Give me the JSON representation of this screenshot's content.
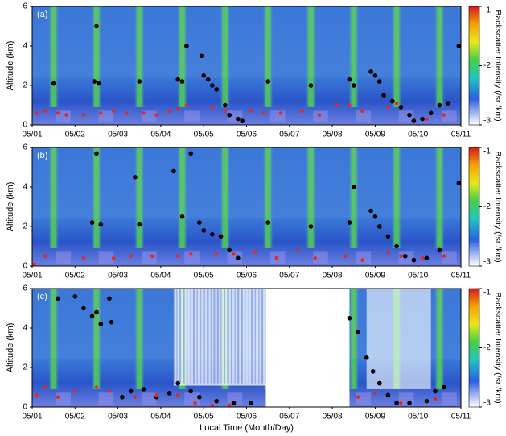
{
  "chart_data": [
    {
      "type": "scatter",
      "panel_label": "(a)",
      "ylabel": "Altitude (km)",
      "xlim": [
        1,
        11
      ],
      "ylim": [
        0,
        6
      ],
      "xticks": [
        {
          "value": 1,
          "label": "05/01"
        },
        {
          "value": 2,
          "label": "05/02"
        },
        {
          "value": 3,
          "label": "05/03"
        },
        {
          "value": 4,
          "label": "05/04"
        },
        {
          "value": 5,
          "label": "05/05"
        },
        {
          "value": 6,
          "label": "05/06"
        },
        {
          "value": 7,
          "label": "05/07"
        },
        {
          "value": 8,
          "label": "05/08"
        },
        {
          "value": 9,
          "label": "05/09"
        },
        {
          "value": 10,
          "label": "05/10"
        },
        {
          "value": 11,
          "label": "05/11"
        }
      ],
      "yticks": [
        0,
        2,
        4,
        6
      ],
      "colorbar": {
        "label": "Backscatter Intensity (/sr /km)",
        "lim": [
          -3,
          -1
        ],
        "ticks": [
          -1,
          -2,
          -3
        ]
      },
      "series": [
        {
          "color": "#000000",
          "x": [
            1.5,
            2.45,
            2.5,
            2.55,
            3.5,
            4.4,
            4.5,
            4.6,
            4.95,
            5.0,
            5.1,
            5.2,
            5.3,
            5.5,
            5.6,
            5.8,
            5.9,
            6.5,
            7.5,
            8.4,
            8.5,
            8.9,
            9.0,
            9.1,
            9.2,
            9.4,
            9.6,
            9.8,
            9.9,
            10.1,
            10.3,
            10.5,
            10.7,
            10.95
          ],
          "values": [
            2.1,
            2.2,
            5.0,
            2.1,
            2.2,
            2.3,
            2.2,
            4.0,
            3.5,
            2.5,
            2.3,
            2.0,
            1.8,
            1.0,
            0.5,
            0.3,
            0.2,
            2.2,
            2.0,
            2.3,
            2.0,
            2.7,
            2.5,
            2.2,
            1.5,
            1.2,
            0.9,
            0.5,
            0.2,
            0.3,
            0.6,
            1.0,
            1.1,
            4.0
          ]
        },
        {
          "color": "#e8261c",
          "x": [
            1.1,
            1.3,
            1.6,
            1.8,
            2.2,
            2.6,
            2.9,
            3.2,
            3.6,
            3.9,
            4.2,
            4.4,
            4.6,
            5.2,
            5.5,
            6.1,
            6.4,
            6.8,
            7.3,
            7.7,
            8.1,
            8.4,
            8.7,
            9.3,
            9.5,
            10.2,
            10.6
          ],
          "values": [
            0.6,
            0.7,
            0.6,
            0.5,
            0.5,
            0.6,
            0.7,
            0.6,
            0.6,
            0.5,
            0.7,
            0.8,
            1.0,
            0.9,
            0.7,
            0.7,
            0.6,
            0.6,
            0.7,
            0.5,
            1.0,
            1.0,
            0.7,
            0.9,
            1.1,
            0.3,
            0.5
          ]
        }
      ]
    },
    {
      "type": "scatter",
      "panel_label": "(b)",
      "ylabel": "Altitude (km)",
      "xlim": [
        1,
        11
      ],
      "ylim": [
        0,
        6
      ],
      "xticks": [
        {
          "value": 1,
          "label": "05/01"
        },
        {
          "value": 2,
          "label": "05/02"
        },
        {
          "value": 3,
          "label": "05/03"
        },
        {
          "value": 4,
          "label": "05/04"
        },
        {
          "value": 5,
          "label": "05/05"
        },
        {
          "value": 6,
          "label": "05/06"
        },
        {
          "value": 7,
          "label": "05/07"
        },
        {
          "value": 8,
          "label": "05/08"
        },
        {
          "value": 9,
          "label": "05/09"
        },
        {
          "value": 10,
          "label": "05/10"
        },
        {
          "value": 11,
          "label": "05/11"
        }
      ],
      "yticks": [
        0,
        2,
        4,
        6
      ],
      "colorbar": {
        "label": "Backscatter Intensity (/sr /km)",
        "lim": [
          -3,
          -1
        ],
        "ticks": [
          -1,
          -2,
          -3
        ]
      },
      "series": [
        {
          "color": "#000000",
          "x": [
            2.4,
            2.5,
            2.6,
            3.4,
            3.5,
            4.3,
            4.5,
            4.7,
            4.9,
            5.0,
            5.2,
            5.4,
            5.6,
            5.8,
            6.5,
            7.5,
            8.4,
            8.5,
            8.9,
            9.0,
            9.1,
            9.3,
            9.5,
            9.7,
            9.9,
            10.2,
            10.5,
            10.95
          ],
          "values": [
            2.2,
            5.7,
            2.1,
            4.5,
            2.1,
            4.8,
            2.5,
            5.7,
            2.2,
            1.8,
            1.6,
            1.5,
            0.8,
            0.4,
            2.2,
            2.0,
            2.2,
            4.0,
            2.8,
            2.5,
            2.0,
            1.5,
            1.0,
            0.5,
            0.3,
            0.4,
            0.8,
            4.2
          ]
        },
        {
          "color": "#e8261c",
          "x": [
            1.05,
            1.3,
            2.2,
            2.9,
            3.3,
            3.8,
            4.4,
            4.7,
            5.3,
            5.7,
            6.2,
            6.7,
            7.2,
            7.6,
            8.3,
            8.7,
            9.3,
            9.6,
            10.1,
            10.6
          ],
          "values": [
            0.1,
            0.5,
            0.4,
            0.4,
            0.5,
            0.5,
            0.5,
            0.6,
            0.6,
            0.6,
            0.7,
            0.4,
            0.8,
            0.4,
            0.5,
            0.3,
            0.7,
            0.5,
            0.4,
            0.5
          ]
        }
      ]
    },
    {
      "type": "scatter",
      "panel_label": "(c)",
      "ylabel": "Altitude (km)",
      "xlabel": "Local Time (Month/Day)",
      "xlim": [
        1,
        11
      ],
      "ylim": [
        0,
        6
      ],
      "xticks": [
        {
          "value": 1,
          "label": "05/01"
        },
        {
          "value": 2,
          "label": "05/02"
        },
        {
          "value": 3,
          "label": "05/03"
        },
        {
          "value": 4,
          "label": "05/04"
        },
        {
          "value": 5,
          "label": "05/05"
        },
        {
          "value": 6,
          "label": "05/06"
        },
        {
          "value": 7,
          "label": "05/07"
        },
        {
          "value": 8,
          "label": "05/08"
        },
        {
          "value": 9,
          "label": "05/09"
        },
        {
          "value": 10,
          "label": "05/10"
        },
        {
          "value": 11,
          "label": "05/11"
        }
      ],
      "yticks": [
        0,
        2,
        4,
        6
      ],
      "colorbar": {
        "label": "Backscatter Intensity (/sr /km)",
        "lim": [
          -3,
          -1
        ],
        "ticks": [
          -1,
          -2,
          -3
        ]
      },
      "series": [
        {
          "color": "#000000",
          "x": [
            1.6,
            2.0,
            2.2,
            2.4,
            2.5,
            2.6,
            2.8,
            2.85,
            3.1,
            3.3,
            3.6,
            3.9,
            4.2,
            4.4,
            4.7,
            4.9,
            5.3,
            5.7,
            6.1,
            8.4,
            8.6,
            8.8,
            8.95,
            9.1,
            9.3,
            9.5,
            9.8,
            10.2,
            10.4,
            10.6
          ],
          "values": [
            5.5,
            5.6,
            5.0,
            4.6,
            4.8,
            4.2,
            5.5,
            4.3,
            0.5,
            0.8,
            0.9,
            0.5,
            0.7,
            1.2,
            0.8,
            0.5,
            0.3,
            0.2,
            0.2,
            4.5,
            3.8,
            2.5,
            1.8,
            1.2,
            0.6,
            0.2,
            0.2,
            0.3,
            0.8,
            1.0
          ]
        },
        {
          "color": "#e8261c",
          "x": [
            1.1,
            1.3,
            1.6,
            2.0,
            2.5,
            2.8,
            3.4,
            3.9,
            4.4,
            4.8,
            5.2,
            5.6,
            8.6,
            9.0,
            9.6,
            10.4
          ],
          "values": [
            0.6,
            1.0,
            0.5,
            0.8,
            1.0,
            0.8,
            0.5,
            0.6,
            0.6,
            0.2,
            0.1,
            0.1,
            0.5,
            0.7,
            0.2,
            0.4
          ]
        }
      ]
    }
  ]
}
